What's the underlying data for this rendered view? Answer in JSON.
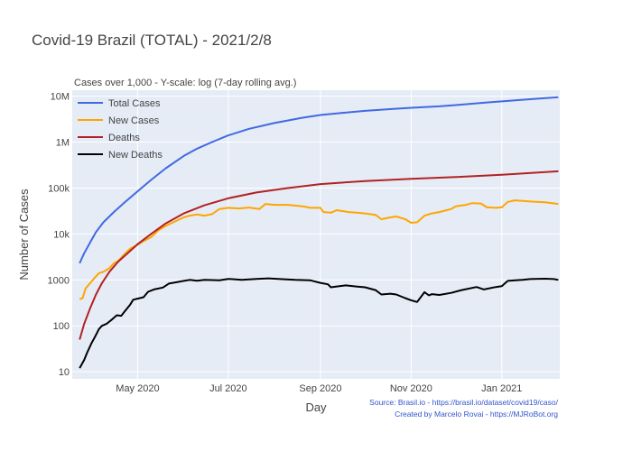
{
  "chart_data": {
    "type": "line",
    "title": "Covid-19 Brazil (TOTAL) - 2021/2/8",
    "subtitle": "Cases over 1,000 - Y-scale: log (7-day rolling avg.)",
    "xlabel": "Day",
    "ylabel": "Number of Cases",
    "yscale": "log",
    "ylim": [
      7,
      13500000
    ],
    "xlim": [
      "2020-03-18",
      "2021-02-09"
    ],
    "grid": true,
    "legend_position": "top-left",
    "x_ticks": [
      {
        "date": "2020-05-01",
        "label": "May 2020"
      },
      {
        "date": "2020-07-01",
        "label": "Jul 2020"
      },
      {
        "date": "2020-09-01",
        "label": "Sep 2020"
      },
      {
        "date": "2020-11-01",
        "label": "Nov 2020"
      },
      {
        "date": "2021-01-01",
        "label": "Jan 2021"
      }
    ],
    "y_ticks": [
      {
        "value": 10,
        "label": "10"
      },
      {
        "value": 100,
        "label": "100"
      },
      {
        "value": 1000,
        "label": "1000"
      },
      {
        "value": 10000,
        "label": "10k"
      },
      {
        "value": 100000,
        "label": "100k"
      },
      {
        "value": 1000000,
        "label": "1M"
      },
      {
        "value": 10000000,
        "label": "10M"
      }
    ],
    "series": [
      {
        "name": "Total Cases",
        "color": "#4169e1",
        "points": [
          [
            "2020-03-23",
            2300
          ],
          [
            "2020-03-26",
            3800
          ],
          [
            "2020-03-30",
            6500
          ],
          [
            "2020-04-03",
            11000
          ],
          [
            "2020-04-08",
            18000
          ],
          [
            "2020-04-15",
            30000
          ],
          [
            "2020-04-22",
            48000
          ],
          [
            "2020-05-01",
            85000
          ],
          [
            "2020-05-10",
            150000
          ],
          [
            "2020-05-20",
            270000
          ],
          [
            "2020-06-01",
            500000
          ],
          [
            "2020-06-10",
            720000
          ],
          [
            "2020-06-20",
            1000000
          ],
          [
            "2020-07-01",
            1400000
          ],
          [
            "2020-07-15",
            1950000
          ],
          [
            "2020-08-01",
            2600000
          ],
          [
            "2020-08-20",
            3400000
          ],
          [
            "2020-09-01",
            3900000
          ],
          [
            "2020-09-15",
            4300000
          ],
          [
            "2020-10-01",
            4800000
          ],
          [
            "2020-10-20",
            5300000
          ],
          [
            "2020-11-01",
            5600000
          ],
          [
            "2020-11-20",
            6000000
          ],
          [
            "2020-12-01",
            6400000
          ],
          [
            "2020-12-20",
            7200000
          ],
          [
            "2021-01-01",
            7700000
          ],
          [
            "2021-01-20",
            8600000
          ],
          [
            "2021-02-08",
            9500000
          ]
        ]
      },
      {
        "name": "New Cases",
        "color": "#ffa500",
        "points": [
          [
            "2020-03-23",
            380
          ],
          [
            "2020-03-25",
            400
          ],
          [
            "2020-03-27",
            650
          ],
          [
            "2020-03-30",
            850
          ],
          [
            "2020-04-02",
            1100
          ],
          [
            "2020-04-05",
            1400
          ],
          [
            "2020-04-08",
            1500
          ],
          [
            "2020-04-12",
            1800
          ],
          [
            "2020-04-15",
            2300
          ],
          [
            "2020-04-18",
            2600
          ],
          [
            "2020-04-22",
            3600
          ],
          [
            "2020-04-26",
            4800
          ],
          [
            "2020-05-01",
            5800
          ],
          [
            "2020-05-05",
            7000
          ],
          [
            "2020-05-10",
            8500
          ],
          [
            "2020-05-15",
            12000
          ],
          [
            "2020-05-20",
            15000
          ],
          [
            "2020-05-25",
            18000
          ],
          [
            "2020-06-01",
            23000
          ],
          [
            "2020-06-05",
            25000
          ],
          [
            "2020-06-10",
            26500
          ],
          [
            "2020-06-15",
            25000
          ],
          [
            "2020-06-20",
            27000
          ],
          [
            "2020-06-25",
            35000
          ],
          [
            "2020-07-01",
            37000
          ],
          [
            "2020-07-08",
            36000
          ],
          [
            "2020-07-15",
            37500
          ],
          [
            "2020-07-22",
            35000
          ],
          [
            "2020-07-26",
            45000
          ],
          [
            "2020-08-01",
            43000
          ],
          [
            "2020-08-10",
            43000
          ],
          [
            "2020-08-20",
            40000
          ],
          [
            "2020-08-25",
            37000
          ],
          [
            "2020-09-01",
            37000
          ],
          [
            "2020-09-03",
            30000
          ],
          [
            "2020-09-08",
            29000
          ],
          [
            "2020-09-12",
            33000
          ],
          [
            "2020-09-20",
            30000
          ],
          [
            "2020-09-25",
            29000
          ],
          [
            "2020-10-01",
            28000
          ],
          [
            "2020-10-08",
            26000
          ],
          [
            "2020-10-12",
            21000
          ],
          [
            "2020-10-18",
            23000
          ],
          [
            "2020-10-22",
            24000
          ],
          [
            "2020-10-28",
            21000
          ],
          [
            "2020-11-01",
            17500
          ],
          [
            "2020-11-05",
            18000
          ],
          [
            "2020-11-10",
            25000
          ],
          [
            "2020-11-15",
            28000
          ],
          [
            "2020-11-20",
            30000
          ],
          [
            "2020-11-28",
            35000
          ],
          [
            "2020-12-01",
            40000
          ],
          [
            "2020-12-08",
            43000
          ],
          [
            "2020-12-12",
            47000
          ],
          [
            "2020-12-18",
            46000
          ],
          [
            "2020-12-22",
            38000
          ],
          [
            "2020-12-28",
            37000
          ],
          [
            "2021-01-01",
            38000
          ],
          [
            "2021-01-05",
            50000
          ],
          [
            "2021-01-10",
            54000
          ],
          [
            "2021-01-20",
            51000
          ],
          [
            "2021-01-30",
            49000
          ],
          [
            "2021-02-08",
            45000
          ]
        ]
      },
      {
        "name": "Deaths",
        "color": "#b22222",
        "points": [
          [
            "2020-03-23",
            50
          ],
          [
            "2020-03-26",
            110
          ],
          [
            "2020-03-30",
            240
          ],
          [
            "2020-04-03",
            480
          ],
          [
            "2020-04-07",
            850
          ],
          [
            "2020-04-12",
            1500
          ],
          [
            "2020-04-18",
            2500
          ],
          [
            "2020-04-25",
            4000
          ],
          [
            "2020-05-01",
            6000
          ],
          [
            "2020-05-10",
            10000
          ],
          [
            "2020-05-20",
            17000
          ],
          [
            "2020-06-01",
            28000
          ],
          [
            "2020-06-15",
            42000
          ],
          [
            "2020-07-01",
            60000
          ],
          [
            "2020-07-20",
            80000
          ],
          [
            "2020-08-10",
            100000
          ],
          [
            "2020-09-01",
            122000
          ],
          [
            "2020-10-01",
            142000
          ],
          [
            "2020-11-01",
            159000
          ],
          [
            "2020-12-01",
            173000
          ],
          [
            "2021-01-01",
            195000
          ],
          [
            "2021-02-08",
            232000
          ]
        ]
      },
      {
        "name": "New Deaths",
        "color": "#000000",
        "points": [
          [
            "2020-03-23",
            12
          ],
          [
            "2020-03-26",
            18
          ],
          [
            "2020-03-28",
            26
          ],
          [
            "2020-03-31",
            42
          ],
          [
            "2020-04-02",
            55
          ],
          [
            "2020-04-05",
            85
          ],
          [
            "2020-04-07",
            100
          ],
          [
            "2020-04-10",
            110
          ],
          [
            "2020-04-14",
            140
          ],
          [
            "2020-04-17",
            170
          ],
          [
            "2020-04-20",
            165
          ],
          [
            "2020-04-22",
            200
          ],
          [
            "2020-04-26",
            290
          ],
          [
            "2020-04-28",
            370
          ],
          [
            "2020-05-01",
            390
          ],
          [
            "2020-05-05",
            420
          ],
          [
            "2020-05-08",
            550
          ],
          [
            "2020-05-12",
            620
          ],
          [
            "2020-05-18",
            680
          ],
          [
            "2020-05-22",
            830
          ],
          [
            "2020-05-28",
            900
          ],
          [
            "2020-06-01",
            950
          ],
          [
            "2020-06-05",
            1000
          ],
          [
            "2020-06-10",
            960
          ],
          [
            "2020-06-15",
            1000
          ],
          [
            "2020-06-25",
            980
          ],
          [
            "2020-07-01",
            1050
          ],
          [
            "2020-07-10",
            1000
          ],
          [
            "2020-07-20",
            1050
          ],
          [
            "2020-07-28",
            1080
          ],
          [
            "2020-08-05",
            1040
          ],
          [
            "2020-08-15",
            1000
          ],
          [
            "2020-08-25",
            980
          ],
          [
            "2020-09-01",
            860
          ],
          [
            "2020-09-06",
            800
          ],
          [
            "2020-09-08",
            690
          ],
          [
            "2020-09-12",
            720
          ],
          [
            "2020-09-18",
            760
          ],
          [
            "2020-09-25",
            720
          ],
          [
            "2020-10-01",
            690
          ],
          [
            "2020-10-08",
            600
          ],
          [
            "2020-10-12",
            480
          ],
          [
            "2020-10-18",
            500
          ],
          [
            "2020-10-22",
            480
          ],
          [
            "2020-10-28",
            400
          ],
          [
            "2020-11-01",
            360
          ],
          [
            "2020-11-05",
            330
          ],
          [
            "2020-11-10",
            540
          ],
          [
            "2020-11-13",
            460
          ],
          [
            "2020-11-15",
            490
          ],
          [
            "2020-11-20",
            470
          ],
          [
            "2020-11-28",
            520
          ],
          [
            "2020-12-05",
            600
          ],
          [
            "2020-12-15",
            700
          ],
          [
            "2020-12-20",
            620
          ],
          [
            "2020-12-28",
            700
          ],
          [
            "2021-01-01",
            730
          ],
          [
            "2021-01-05",
            950
          ],
          [
            "2021-01-10",
            980
          ],
          [
            "2021-01-15",
            1000
          ],
          [
            "2021-01-20",
            1040
          ],
          [
            "2021-01-30",
            1060
          ],
          [
            "2021-02-05",
            1040
          ],
          [
            "2021-02-08",
            1000
          ]
        ]
      }
    ]
  },
  "footer": {
    "source": "Source: Brasil.io - https://brasil.io/dataset/covid19/caso/",
    "credit": "Created by Marcelo Rovai - https://MJRoBot.org"
  },
  "colors": {
    "plot_background": "#e5ecf6",
    "grid": "#ffffff",
    "footer_text": "#3355cc"
  }
}
